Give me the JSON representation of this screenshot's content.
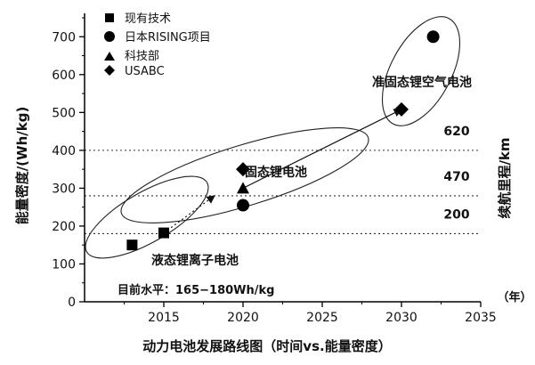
{
  "chart_data": {
    "type": "scatter",
    "title": "",
    "xlabel": "动力电池发展路线图（时间vs.能量密度）",
    "ylabel": "能量密度/(Wh/kg)",
    "right_label": "续航里程/km",
    "x_unit": "（年）",
    "xlim": [
      2010,
      2035
    ],
    "ylim": [
      0,
      750
    ],
    "xticks": [
      "2015",
      "2020",
      "2025",
      "2030",
      "2035"
    ],
    "yticks": [
      "0",
      "100",
      "200",
      "300",
      "400",
      "500",
      "600",
      "700"
    ],
    "legend_position": "top-left",
    "series": [
      {
        "name": "现有技术",
        "marker": "square",
        "points": [
          [
            2013,
            150
          ],
          [
            2015,
            182
          ]
        ]
      },
      {
        "name": "日本RISING项目",
        "marker": "circle",
        "points": [
          [
            2020,
            255
          ],
          [
            2032,
            700
          ]
        ]
      },
      {
        "name": "科技部",
        "marker": "triangle",
        "points": [
          [
            2020,
            300
          ]
        ]
      },
      {
        "name": "USABC",
        "marker": "diamond",
        "points": [
          [
            2020,
            350
          ],
          [
            2030,
            508
          ]
        ]
      }
    ],
    "reference_lines": [
      {
        "y": 180,
        "range_label": "200"
      },
      {
        "y": 280,
        "range_label": "470"
      },
      {
        "y": 400,
        "range_label": "620"
      }
    ],
    "regions": [
      {
        "label": "液态锂离子电池"
      },
      {
        "label": "固态锂电池"
      },
      {
        "label": "准固态锂空气电池"
      }
    ],
    "annotation": "目前水平：165−180Wh/kg",
    "arrows": [
      {
        "from": [
          2015,
          182
        ],
        "to": [
          2018.2,
          280
        ],
        "style": "dotted"
      },
      {
        "from": [
          2020,
          300
        ],
        "to": [
          2030,
          508
        ],
        "style": "solid"
      }
    ]
  }
}
